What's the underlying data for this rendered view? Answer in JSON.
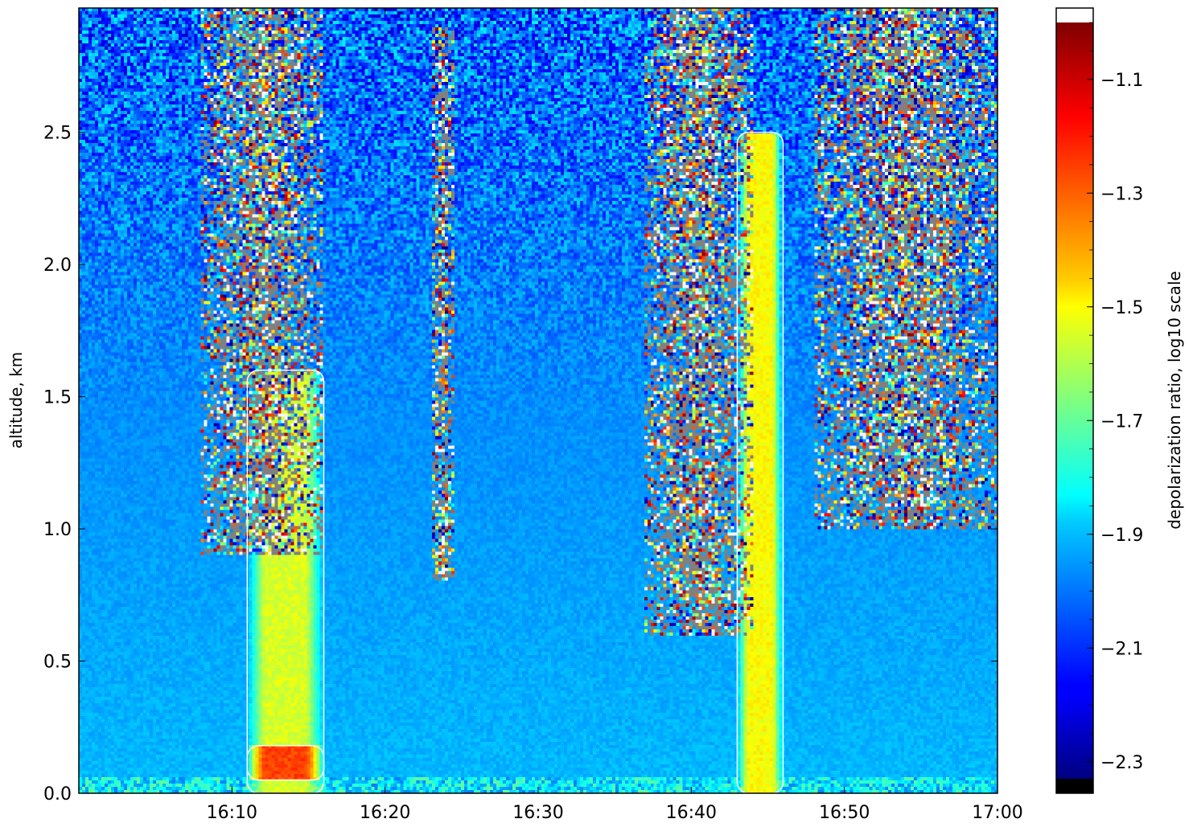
{
  "chart_data": {
    "type": "heatmap",
    "title": "",
    "xlabel": "",
    "ylabel": "altitude, km",
    "x_ticks": [
      "16:10",
      "16:20",
      "16:30",
      "16:40",
      "16:50",
      "17:00"
    ],
    "x_tick_values": [
      10,
      20,
      30,
      40,
      50,
      60
    ],
    "xlim": [
      0,
      60
    ],
    "y_ticks": [
      "0.0",
      "0.5",
      "1.0",
      "1.5",
      "2.0",
      "2.5"
    ],
    "y_tick_values": [
      0.0,
      0.5,
      1.0,
      1.5,
      2.0,
      2.5
    ],
    "ylim": [
      0,
      2.97
    ],
    "colorbar": {
      "label": "depolarization ratio, log10 scale",
      "ticks": [
        "−1.1",
        "−1.3",
        "−1.5",
        "−1.7",
        "−1.9",
        "−2.1",
        "−2.3"
      ],
      "tick_values": [
        -1.1,
        -1.3,
        -1.5,
        -1.7,
        -1.9,
        -2.1,
        -2.3
      ],
      "range": [
        -2.33,
        -1.0
      ],
      "colormap": "jet",
      "over_color": "#ffffff",
      "under_color": "#000000"
    },
    "features": [
      {
        "x_range": [
          8,
          16
        ],
        "y_range": [
          0.9,
          2.97
        ],
        "level": "noise"
      },
      {
        "x_range": [
          11,
          16
        ],
        "y_range": [
          0.0,
          1.6
        ],
        "level": -1.55
      },
      {
        "x_range": [
          11,
          16
        ],
        "y_range": [
          0.05,
          0.18
        ],
        "level": -1.25
      },
      {
        "x_range": [
          23,
          24.5
        ],
        "y_range": [
          0.8,
          2.9
        ],
        "level": "noise"
      },
      {
        "x_range": [
          37,
          44
        ],
        "y_range": [
          0.6,
          2.97
        ],
        "level": "noise"
      },
      {
        "x_range": [
          43,
          46
        ],
        "y_range": [
          0.0,
          2.5
        ],
        "level": -1.5
      },
      {
        "x_range": [
          48,
          60
        ],
        "y_range": [
          1.0,
          2.97
        ],
        "level": "noise"
      }
    ],
    "contour_color": "#ffffff",
    "grid": false,
    "legend": "colorbar-right"
  }
}
